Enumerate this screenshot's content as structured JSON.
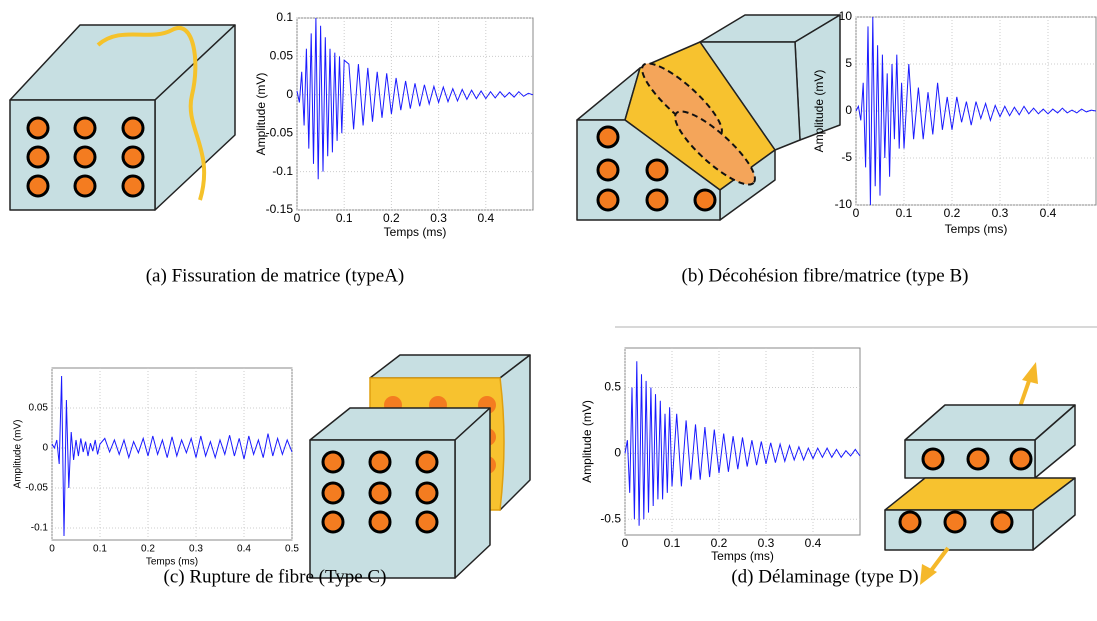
{
  "chart_data": [
    {
      "type": "line",
      "ylabel": "Amplitude (mV)",
      "xlabel": "Temps (ms)",
      "caption": "(a) Fissuration de matrice (typeA)",
      "color": "#1a1aff",
      "x": [
        0,
        0.005,
        0.01,
        0.015,
        0.02,
        0.025,
        0.03,
        0.035,
        0.04,
        0.045,
        0.05,
        0.055,
        0.06,
        0.065,
        0.07,
        0.075,
        0.08,
        0.085,
        0.09,
        0.095,
        0.1,
        0.11,
        0.12,
        0.13,
        0.14,
        0.15,
        0.16,
        0.17,
        0.18,
        0.19,
        0.2,
        0.21,
        0.22,
        0.23,
        0.24,
        0.25,
        0.26,
        0.27,
        0.28,
        0.29,
        0.3,
        0.31,
        0.32,
        0.33,
        0.34,
        0.35,
        0.36,
        0.37,
        0.38,
        0.39,
        0.4,
        0.41,
        0.42,
        0.43,
        0.44,
        0.45,
        0.46,
        0.47,
        0.48,
        0.49,
        0.5
      ],
      "values": [
        0.005,
        -0.01,
        0.03,
        -0.04,
        0.06,
        -0.07,
        0.08,
        -0.09,
        0.1,
        -0.11,
        0.09,
        -0.1,
        0.075,
        -0.08,
        0.06,
        -0.075,
        0.055,
        -0.06,
        0.05,
        -0.05,
        0.045,
        0.04,
        -0.045,
        0.04,
        -0.04,
        0.035,
        -0.035,
        0.03,
        -0.03,
        0.028,
        -0.025,
        0.022,
        -0.02,
        0.018,
        -0.018,
        0.015,
        -0.015,
        0.013,
        -0.012,
        0.011,
        -0.01,
        0.01,
        -0.009,
        0.008,
        -0.008,
        0.007,
        -0.006,
        0.006,
        -0.005,
        0.005,
        -0.005,
        0.004,
        -0.004,
        0.004,
        -0.003,
        0.003,
        -0.003,
        0.004,
        -0.002,
        0.002,
        0
      ],
      "xlim": [
        0,
        0.5
      ],
      "ylim": [
        -0.15,
        0.1
      ],
      "xticks": [
        0,
        0.1,
        0.2,
        0.3,
        0.4
      ],
      "yticks": [
        -0.15,
        -0.1,
        -0.05,
        0,
        0.05,
        0.1
      ],
      "grid": true
    },
    {
      "type": "line",
      "ylabel": "Amplitude (mV)",
      "xlabel": "Temps (ms)",
      "caption": "(b) Décohésion fibre/matrice (type B)",
      "color": "#1a1aff",
      "x": [
        0,
        0.005,
        0.01,
        0.015,
        0.02,
        0.025,
        0.03,
        0.035,
        0.04,
        0.045,
        0.05,
        0.055,
        0.06,
        0.065,
        0.07,
        0.075,
        0.08,
        0.085,
        0.09,
        0.095,
        0.1,
        0.11,
        0.12,
        0.13,
        0.14,
        0.15,
        0.16,
        0.17,
        0.18,
        0.19,
        0.2,
        0.21,
        0.22,
        0.23,
        0.24,
        0.25,
        0.26,
        0.27,
        0.28,
        0.29,
        0.3,
        0.31,
        0.32,
        0.33,
        0.34,
        0.35,
        0.36,
        0.37,
        0.38,
        0.39,
        0.4,
        0.41,
        0.42,
        0.43,
        0.44,
        0.45,
        0.46,
        0.47,
        0.48,
        0.49,
        0.5
      ],
      "values": [
        0,
        0.5,
        -1,
        3,
        -6,
        9,
        -10,
        10,
        -8,
        7,
        -9,
        6,
        -5,
        4,
        -7,
        5,
        -3,
        6,
        -4,
        3,
        -4,
        5,
        -3,
        2.5,
        -3,
        2,
        -2.5,
        3,
        -2,
        1.5,
        -2,
        1.5,
        -1.2,
        1,
        -1.5,
        1,
        -0.8,
        0.8,
        -1,
        0.6,
        -0.6,
        0.5,
        -0.5,
        0.4,
        -0.4,
        0.5,
        -0.3,
        0.3,
        -0.3,
        0.2,
        -0.3,
        0.2,
        -0.2,
        0.3,
        -0.2,
        0.1,
        -0.2,
        0.2,
        -0.1,
        0.1,
        0
      ],
      "xlim": [
        0,
        0.5
      ],
      "ylim": [
        -10,
        10
      ],
      "xticks": [
        0,
        0.1,
        0.2,
        0.3,
        0.4
      ],
      "yticks": [
        -10,
        -5,
        0,
        5,
        10
      ],
      "grid": true
    },
    {
      "type": "line",
      "ylabel": "Amplitude (mV)",
      "xlabel": "Temps (ms)",
      "caption": "(c) Rupture de fibre (Type C)",
      "color": "#1a1aff",
      "x": [
        0,
        0.005,
        0.01,
        0.015,
        0.02,
        0.025,
        0.03,
        0.035,
        0.04,
        0.045,
        0.05,
        0.055,
        0.06,
        0.065,
        0.07,
        0.075,
        0.08,
        0.085,
        0.09,
        0.095,
        0.1,
        0.11,
        0.12,
        0.13,
        0.14,
        0.15,
        0.16,
        0.17,
        0.18,
        0.19,
        0.2,
        0.21,
        0.22,
        0.23,
        0.24,
        0.25,
        0.26,
        0.27,
        0.28,
        0.29,
        0.3,
        0.31,
        0.32,
        0.33,
        0.34,
        0.35,
        0.36,
        0.37,
        0.38,
        0.39,
        0.4,
        0.41,
        0.42,
        0.43,
        0.44,
        0.45,
        0.46,
        0.47,
        0.48,
        0.49,
        0.5
      ],
      "values": [
        0.005,
        0,
        0.01,
        -0.02,
        0.09,
        -0.11,
        0.06,
        -0.05,
        0.02,
        -0.015,
        0.01,
        -0.01,
        0.012,
        -0.005,
        0.008,
        -0.01,
        0.006,
        -0.004,
        0.01,
        -0.008,
        0.005,
        0.012,
        -0.005,
        0.01,
        -0.008,
        0.01,
        -0.012,
        0.008,
        -0.006,
        0.012,
        -0.01,
        0.015,
        -0.008,
        0.01,
        -0.012,
        0.014,
        -0.01,
        0.01,
        -0.006,
        0.012,
        -0.012,
        0.015,
        -0.01,
        0.008,
        -0.012,
        0.01,
        -0.008,
        0.016,
        -0.01,
        0.012,
        -0.014,
        0.015,
        -0.008,
        0.01,
        -0.012,
        0.018,
        -0.01,
        0.012,
        -0.008,
        0.01,
        -0.005
      ],
      "xlim": [
        0,
        0.5
      ],
      "ylim": [
        -0.115,
        0.1
      ],
      "xticks": [
        0,
        0.1,
        0.2,
        0.3,
        0.4,
        0.5
      ],
      "yticks": [
        -0.1,
        -0.05,
        0,
        0.05
      ],
      "grid": true
    },
    {
      "type": "line",
      "ylabel": "Amplitude (mV)",
      "xlabel": "Temps (ms)",
      "caption": "(d) Délaminage (type D)",
      "color": "#1a1aff",
      "x": [
        0,
        0.005,
        0.01,
        0.015,
        0.02,
        0.025,
        0.03,
        0.035,
        0.04,
        0.045,
        0.05,
        0.055,
        0.06,
        0.065,
        0.07,
        0.075,
        0.08,
        0.085,
        0.09,
        0.095,
        0.1,
        0.11,
        0.12,
        0.13,
        0.14,
        0.15,
        0.16,
        0.17,
        0.18,
        0.19,
        0.2,
        0.21,
        0.22,
        0.23,
        0.24,
        0.25,
        0.26,
        0.27,
        0.28,
        0.29,
        0.3,
        0.31,
        0.32,
        0.33,
        0.34,
        0.35,
        0.36,
        0.37,
        0.38,
        0.39,
        0.4,
        0.41,
        0.42,
        0.43,
        0.44,
        0.45,
        0.46,
        0.47,
        0.48,
        0.49,
        0.5
      ],
      "values": [
        0,
        0.1,
        -0.3,
        0.5,
        -0.5,
        0.7,
        -0.55,
        0.6,
        -0.5,
        0.55,
        -0.45,
        0.5,
        -0.4,
        0.45,
        -0.35,
        0.4,
        -0.35,
        0.3,
        -0.3,
        0.35,
        -0.25,
        0.3,
        -0.25,
        0.25,
        -0.2,
        0.22,
        -0.2,
        0.2,
        -0.18,
        0.18,
        -0.15,
        0.15,
        -0.14,
        0.13,
        -0.12,
        0.12,
        -0.1,
        0.1,
        -0.09,
        0.09,
        -0.08,
        0.08,
        -0.07,
        0.07,
        -0.06,
        0.06,
        -0.05,
        0.05,
        -0.05,
        0.04,
        -0.04,
        0.04,
        -0.03,
        0.04,
        -0.03,
        0.03,
        -0.03,
        0.02,
        -0.02,
        0.03,
        -0.02
      ],
      "xlim": [
        0,
        0.5
      ],
      "ylim": [
        -0.62,
        0.8
      ],
      "xticks": [
        0,
        0.1,
        0.2,
        0.3,
        0.4
      ],
      "yticks": [
        -0.5,
        0,
        0.5
      ],
      "grid": true
    }
  ]
}
